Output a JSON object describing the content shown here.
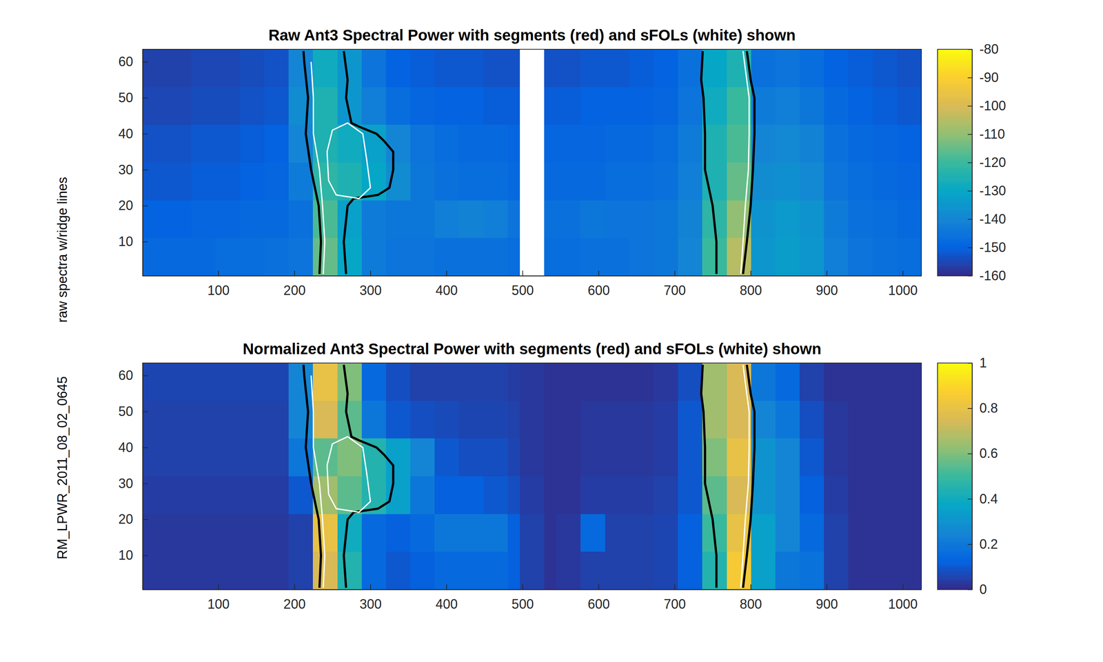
{
  "chart_data": [
    {
      "type": "heatmap",
      "title": "Raw Ant3 Spectral Power with segments (red) and sFOLs (white) shown",
      "ylabel": "raw spectra w/ridge lines",
      "xlim": [
        0.5,
        1024.5
      ],
      "ylim": [
        0.5,
        63.5
      ],
      "xticks": [
        100,
        200,
        300,
        400,
        500,
        600,
        700,
        800,
        900,
        1000
      ],
      "yticks": [
        10,
        20,
        30,
        40,
        50,
        60
      ],
      "cells": {
        "x_edges": [
          0.5,
          32.5,
          64.5,
          96.5,
          128.5,
          160.5,
          192.5,
          224.5,
          256.5,
          288.5,
          320.5,
          352.5,
          384.5,
          416.5,
          448.5,
          480.5,
          496.5,
          528.5,
          544.5,
          576.5,
          608.5,
          640.5,
          672.5,
          704.5,
          736.5,
          768.5,
          800.5,
          832.5,
          864.5,
          896.5,
          928.5,
          960.5,
          992.5,
          1024.5
        ],
        "y_edges": [
          0.5,
          11,
          21.5,
          32,
          42.5,
          53,
          63.5
        ],
        "values": [
          [
            -148,
            -148,
            -148,
            -147,
            -147,
            -146,
            -145,
            -115,
            -130,
            -143,
            -145,
            -145,
            -146,
            -146,
            -146,
            -147,
            null,
            -147,
            -147,
            -146,
            -146,
            -145,
            -144,
            -140,
            -120,
            -105,
            -135,
            -133,
            -135,
            -142,
            -145,
            -146,
            -147
          ],
          [
            -150,
            -150,
            -149,
            -149,
            -148,
            -148,
            -146,
            -118,
            -132,
            -143,
            -144,
            -144,
            -142,
            -141,
            -142,
            -145,
            null,
            -146,
            -146,
            -144,
            -145,
            -145,
            -144,
            -141,
            -122,
            -110,
            -136,
            -134,
            -136,
            -143,
            -146,
            -147,
            -148
          ],
          [
            -152,
            -152,
            -151,
            -151,
            -150,
            -149,
            -143,
            -122,
            -125,
            -130,
            -138,
            -144,
            -146,
            -147,
            -147,
            -148,
            null,
            -148,
            -148,
            -148,
            -147,
            -147,
            -146,
            -142,
            -125,
            -115,
            -138,
            -137,
            -139,
            -145,
            -147,
            -148,
            -149
          ],
          [
            -153,
            -153,
            -152,
            -152,
            -151,
            -150,
            -140,
            -125,
            -128,
            -132,
            -140,
            -145,
            -147,
            -148,
            -148,
            -149,
            null,
            -149,
            -149,
            -149,
            -148,
            -148,
            -147,
            -143,
            -125,
            -118,
            -140,
            -139,
            -141,
            -146,
            -148,
            -149,
            -150
          ],
          [
            -155,
            -155,
            -154,
            -154,
            -153,
            -152,
            -138,
            -125,
            -135,
            -142,
            -147,
            -149,
            -150,
            -150,
            -151,
            -151,
            null,
            -151,
            -151,
            -150,
            -150,
            -150,
            -149,
            -145,
            -128,
            -120,
            -143,
            -142,
            -144,
            -148,
            -150,
            -151,
            -152
          ],
          [
            -156,
            -156,
            -155,
            -155,
            -154,
            -153,
            -140,
            -128,
            -135,
            -145,
            -150,
            -151,
            -152,
            -152,
            -153,
            -153,
            null,
            -153,
            -153,
            -152,
            -152,
            -151,
            -150,
            -146,
            -130,
            -125,
            -146,
            -145,
            -147,
            -150,
            -151,
            -152,
            -153
          ]
        ]
      },
      "colorbar": {
        "range": [
          -160,
          -80
        ],
        "ticks": [
          -160,
          -150,
          -140,
          -130,
          -120,
          -110,
          -100,
          -90,
          -80
        ]
      },
      "series": [
        {
          "color": "#000000",
          "x": [
            233,
            235,
            232,
            222,
            215,
            218,
            213,
            212
          ],
          "y": [
            1,
            10,
            20,
            30,
            40,
            50,
            60,
            63
          ]
        },
        {
          "color": "#000000",
          "x": [
            268,
            265,
            270,
            278,
            310,
            325,
            330,
            330,
            318,
            308,
            285,
            275,
            268,
            270,
            265
          ],
          "y": [
            1,
            10,
            20,
            22,
            23,
            25,
            30,
            35,
            38,
            40,
            42,
            43,
            50,
            55,
            63
          ]
        },
        {
          "color": "#000000",
          "x": [
            755,
            755,
            750,
            740,
            740,
            738,
            735,
            737
          ],
          "y": [
            1,
            10,
            20,
            30,
            40,
            50,
            55,
            63
          ]
        },
        {
          "color": "#000000",
          "x": [
            790,
            795,
            800,
            803,
            805,
            805,
            800,
            795
          ],
          "y": [
            1,
            10,
            20,
            30,
            40,
            50,
            55,
            63
          ]
        },
        {
          "color": "#ffffff",
          "x": [
            238,
            240,
            237,
            233,
            225,
            225,
            222
          ],
          "y": [
            1,
            10,
            20,
            30,
            40,
            50,
            60
          ]
        },
        {
          "color": "#ffffff",
          "x": [
            245,
            255,
            285,
            300,
            295,
            290,
            270,
            250,
            243,
            245
          ],
          "y": [
            27,
            23,
            22,
            25,
            33,
            40,
            43,
            41,
            35,
            27
          ]
        },
        {
          "color": "#ffffff",
          "x": [
            787,
            790,
            793,
            797,
            798,
            798,
            793,
            790
          ],
          "y": [
            1,
            10,
            20,
            30,
            40,
            50,
            58,
            63
          ]
        }
      ]
    },
    {
      "type": "heatmap",
      "title": "Normalized Ant3 Spectral Power with segments (red) and sFOLs (white) shown",
      "ylabel": "RM_LPWR_2011_08_02_0645",
      "xlim": [
        0.5,
        1024.5
      ],
      "ylim": [
        0.5,
        63.5
      ],
      "xticks": [
        100,
        200,
        300,
        400,
        500,
        600,
        700,
        800,
        900,
        1000
      ],
      "yticks": [
        10,
        20,
        30,
        40,
        50,
        60
      ],
      "cells": {
        "x_edges": [
          0.5,
          32.5,
          64.5,
          96.5,
          128.5,
          160.5,
          192.5,
          224.5,
          256.5,
          288.5,
          320.5,
          352.5,
          384.5,
          416.5,
          448.5,
          480.5,
          496.5,
          528.5,
          544.5,
          576.5,
          608.5,
          640.5,
          672.5,
          704.5,
          736.5,
          768.5,
          800.5,
          832.5,
          864.5,
          896.5,
          928.5,
          960.5,
          992.5,
          1024.5
        ],
        "y_edges": [
          0.5,
          11,
          21.5,
          32,
          42.5,
          53,
          63.5
        ],
        "values": [
          [
            0.03,
            0.03,
            0.03,
            0.03,
            0.03,
            0.03,
            0.05,
            0.75,
            0.45,
            0.15,
            0.1,
            0.12,
            0.15,
            0.15,
            0.15,
            0.12,
            0.05,
            0.02,
            0.03,
            0.05,
            0.05,
            0.05,
            0.06,
            0.12,
            0.45,
            0.85,
            0.35,
            0.2,
            0.18,
            0.05,
            0.02,
            0.02,
            0.02
          ],
          [
            0.03,
            0.03,
            0.03,
            0.03,
            0.03,
            0.03,
            0.05,
            0.8,
            0.4,
            0.15,
            0.12,
            0.15,
            0.2,
            0.2,
            0.2,
            0.12,
            0.05,
            0.02,
            0.03,
            0.15,
            0.05,
            0.05,
            0.06,
            0.12,
            0.5,
            0.8,
            0.35,
            0.25,
            0.15,
            0.05,
            0.02,
            0.02,
            0.02
          ],
          [
            0.04,
            0.04,
            0.04,
            0.04,
            0.04,
            0.04,
            0.1,
            0.65,
            0.55,
            0.45,
            0.35,
            0.2,
            0.12,
            0.12,
            0.1,
            0.08,
            0.04,
            0.02,
            0.02,
            0.04,
            0.04,
            0.04,
            0.05,
            0.1,
            0.55,
            0.75,
            0.3,
            0.25,
            0.12,
            0.04,
            0.02,
            0.02,
            0.02
          ],
          [
            0.05,
            0.05,
            0.05,
            0.05,
            0.05,
            0.05,
            0.2,
            0.55,
            0.6,
            0.45,
            0.35,
            0.25,
            0.1,
            0.08,
            0.08,
            0.06,
            0.03,
            0.02,
            0.02,
            0.03,
            0.03,
            0.03,
            0.04,
            0.1,
            0.6,
            0.8,
            0.3,
            0.25,
            0.1,
            0.03,
            0.02,
            0.02,
            0.02
          ],
          [
            0.05,
            0.05,
            0.05,
            0.05,
            0.05,
            0.05,
            0.25,
            0.75,
            0.55,
            0.2,
            0.1,
            0.08,
            0.07,
            0.06,
            0.06,
            0.05,
            0.03,
            0.02,
            0.02,
            0.03,
            0.03,
            0.03,
            0.04,
            0.1,
            0.65,
            0.75,
            0.25,
            0.2,
            0.08,
            0.03,
            0.02,
            0.02,
            0.02
          ],
          [
            0.06,
            0.06,
            0.06,
            0.06,
            0.06,
            0.06,
            0.25,
            0.8,
            0.6,
            0.15,
            0.08,
            0.05,
            0.05,
            0.05,
            0.05,
            0.04,
            0.03,
            0.02,
            0.02,
            0.02,
            0.02,
            0.02,
            0.03,
            0.08,
            0.65,
            0.75,
            0.2,
            0.15,
            0.05,
            0.02,
            0.02,
            0.02,
            0.02
          ]
        ]
      },
      "colorbar": {
        "range": [
          0,
          1
        ],
        "ticks": [
          0,
          0.2,
          0.4,
          0.6,
          0.8,
          1
        ]
      },
      "series": [
        {
          "color": "#000000",
          "x": [
            233,
            235,
            232,
            222,
            215,
            218,
            213,
            212
          ],
          "y": [
            1,
            10,
            20,
            30,
            40,
            50,
            60,
            63
          ]
        },
        {
          "color": "#000000",
          "x": [
            268,
            265,
            270,
            278,
            310,
            325,
            330,
            330,
            318,
            308,
            285,
            275,
            268,
            270,
            265
          ],
          "y": [
            1,
            10,
            20,
            22,
            23,
            25,
            30,
            35,
            38,
            40,
            42,
            43,
            50,
            55,
            63
          ]
        },
        {
          "color": "#000000",
          "x": [
            755,
            755,
            750,
            740,
            740,
            738,
            735,
            737
          ],
          "y": [
            1,
            10,
            20,
            30,
            40,
            50,
            55,
            63
          ]
        },
        {
          "color": "#000000",
          "x": [
            790,
            795,
            800,
            803,
            805,
            805,
            800,
            795
          ],
          "y": [
            1,
            10,
            20,
            30,
            40,
            50,
            55,
            63
          ]
        },
        {
          "color": "#ffffff",
          "x": [
            238,
            240,
            237,
            233,
            225,
            225,
            222
          ],
          "y": [
            1,
            10,
            20,
            30,
            40,
            50,
            60
          ]
        },
        {
          "color": "#ffffff",
          "x": [
            245,
            255,
            285,
            300,
            295,
            290,
            270,
            250,
            243,
            245
          ],
          "y": [
            27,
            23,
            22,
            25,
            33,
            40,
            43,
            41,
            35,
            27
          ]
        },
        {
          "color": "#ffffff",
          "x": [
            787,
            790,
            793,
            797,
            798,
            798,
            793,
            790
          ],
          "y": [
            1,
            10,
            20,
            30,
            40,
            50,
            58,
            63
          ]
        }
      ]
    }
  ]
}
